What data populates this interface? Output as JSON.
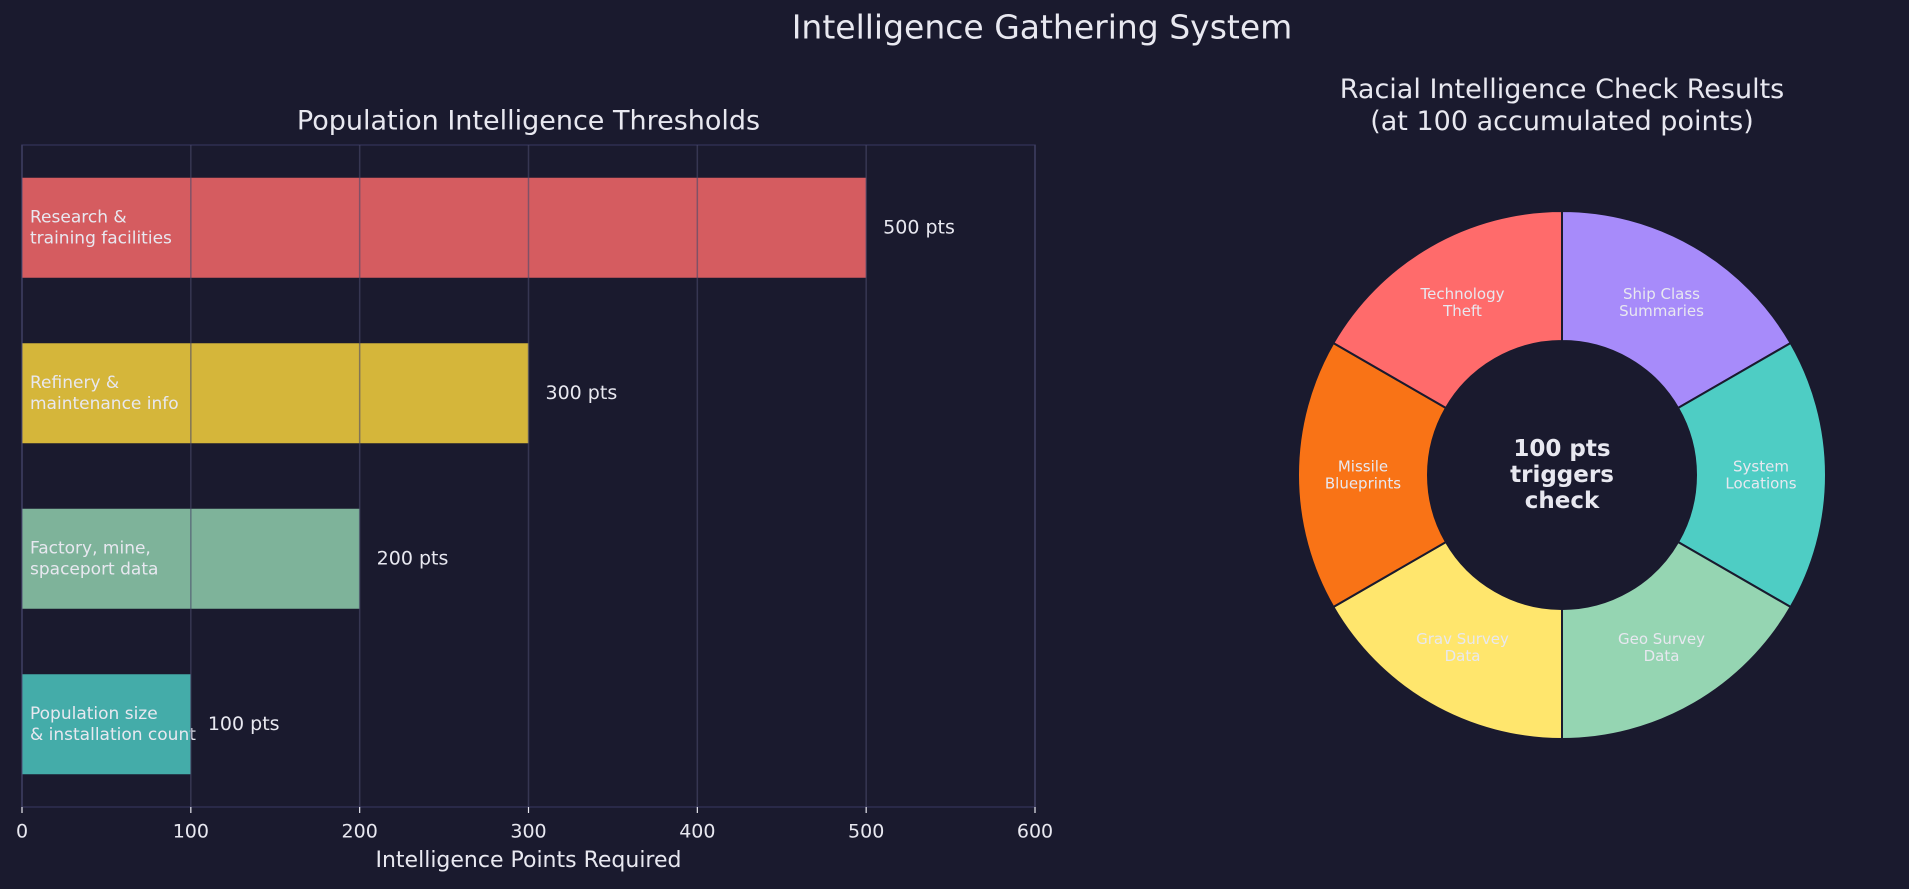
{
  "suptitle": "Intelligence Gathering System",
  "chart_data": [
    {
      "type": "barh",
      "title": "Population Intelligence Thresholds",
      "xlabel": "Intelligence Points Required",
      "categories": [
        "Research &\ntraining facilities",
        "Refinery &\nmaintenance info",
        "Factory, mine,\nspaceport data",
        "Population size\n& installation count"
      ],
      "values": [
        500,
        300,
        200,
        100
      ],
      "value_labels": [
        "500 pts",
        "300 pts",
        "200 pts",
        "100 pts"
      ],
      "colors": [
        "#ff6b6b",
        "#ffd93d",
        "#95d5b2",
        "#4ecdc4"
      ],
      "xlim": [
        0,
        600
      ],
      "xticks": [
        0,
        100,
        200,
        300,
        400,
        500,
        600
      ],
      "grid": true
    },
    {
      "type": "donut",
      "title": "Racial Intelligence Check Results\n(at 100 accumulated points)",
      "categories": [
        "Ship Class\nSummaries",
        "System\nLocations",
        "Geo Survey\nData",
        "Grav Survey\nData",
        "Missile\nBlueprints",
        "Technology\nTheft"
      ],
      "values": [
        1,
        1,
        1,
        1,
        1,
        1
      ],
      "colors": [
        "#a78bfa",
        "#4ecdc4",
        "#95d5b2",
        "#ffe66d",
        "#f97316",
        "#ff6b6b"
      ],
      "center_text": "100 pts\ntriggers\ncheck"
    }
  ]
}
